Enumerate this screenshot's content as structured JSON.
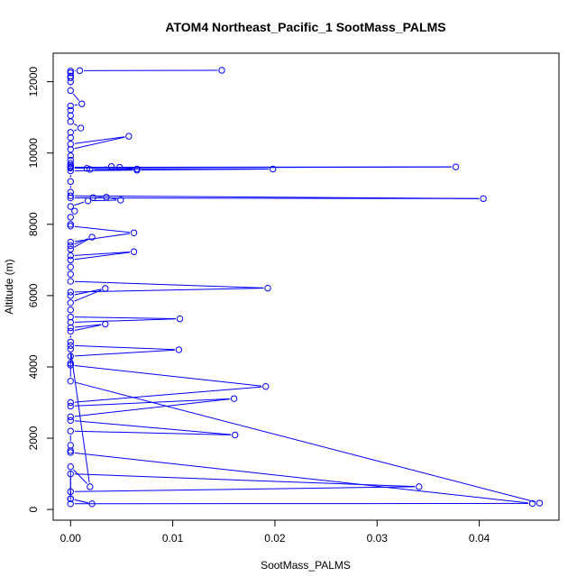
{
  "chart_data": {
    "type": "line",
    "title": "ATOM4 Northeast_Pacific_1 SootMass_PALMS",
    "xlabel": "SootMass_PALMS",
    "ylabel": "Altitude (m)",
    "xlim": [
      -0.0017,
      0.0478
    ],
    "ylim": [
      -300,
      12800
    ],
    "x_ticks": [
      0,
      0.01,
      0.02,
      0.03,
      0.04
    ],
    "x_tick_labels": [
      "0.00",
      "0.01",
      "0.02",
      "0.03",
      "0.04"
    ],
    "y_ticks": [
      0,
      2000,
      4000,
      6000,
      8000,
      10000,
      12000
    ],
    "y_tick_labels": [
      "0",
      "2000",
      "4000",
      "6000",
      "8000",
      "10000",
      "12000"
    ],
    "grid": false,
    "legend": "none",
    "series": [
      {
        "color": "#0000ff",
        "marker": "open-circle",
        "x": [
          0.0148,
          0.0009,
          0.0,
          0.0,
          0.0,
          0.0,
          0.0,
          0.0,
          0.0011,
          0.0,
          0.0,
          0.0,
          0.0,
          0.001,
          0.0,
          0.0,
          0.0,
          0.0057,
          0.0,
          0.0,
          0.0,
          0.0,
          0.0,
          0.0,
          0.0,
          0.0377,
          0.0,
          0.0016,
          0.004,
          0.0048,
          0.0065,
          0.0019,
          0.0198,
          0.0065,
          0.0,
          0.0,
          0.0,
          0.0,
          0.0404,
          0.0,
          0.0022,
          0.0035,
          0.0049,
          0.0017,
          0.0,
          0.0004,
          0.0,
          0.0,
          0.0,
          0.0062,
          0.0,
          0.0,
          0.0021,
          0.0,
          0.0,
          0.0062,
          0.0,
          0.0,
          0.0,
          0.0,
          0.0193,
          0.0,
          0.0,
          0.0034,
          0.0,
          0.0,
          0.0,
          0.0107,
          0.0,
          0.0,
          0.0034,
          0.0,
          0.0,
          0.0,
          0.0106,
          0.0,
          0.0,
          0.0,
          0.0191,
          0.0,
          0.0,
          0.016,
          0.0,
          0.0,
          0.0161,
          0.0,
          0.0,
          0.0,
          0.0,
          0.0452,
          0.0,
          0.0,
          0.0341,
          0.0,
          0.0,
          0.0021,
          0.0,
          0.0,
          0.0019,
          0.0,
          0.0,
          0.0459
        ],
        "y": [
          12320,
          12310,
          12300,
          12250,
          12160,
          12110,
          12000,
          11750,
          11380,
          11320,
          11200,
          11050,
          10880,
          10700,
          10580,
          10430,
          10250,
          10470,
          10100,
          9920,
          9800,
          9700,
          9650,
          9610,
          9600,
          9610,
          9580,
          9570,
          9620,
          9600,
          9550,
          9540,
          9550,
          9520,
          9500,
          9200,
          8900,
          8800,
          8720,
          8740,
          8750,
          8760,
          8680,
          8660,
          8500,
          8370,
          8200,
          8000,
          7950,
          7760,
          7500,
          7400,
          7640,
          7300,
          7120,
          7230,
          7000,
          6800,
          6600,
          6400,
          6210,
          6100,
          6000,
          6200,
          5800,
          5600,
          5400,
          5350,
          5250,
          5100,
          5200,
          5000,
          4700,
          4600,
          4480,
          4300,
          4100,
          4050,
          3450,
          3000,
          2900,
          3110,
          2600,
          2500,
          2090,
          2200,
          1800,
          1650,
          1600,
          170,
          160,
          1000,
          640,
          500,
          300,
          160,
          300,
          1200,
          640,
          4500,
          3600,
          180
        ]
      }
    ]
  }
}
